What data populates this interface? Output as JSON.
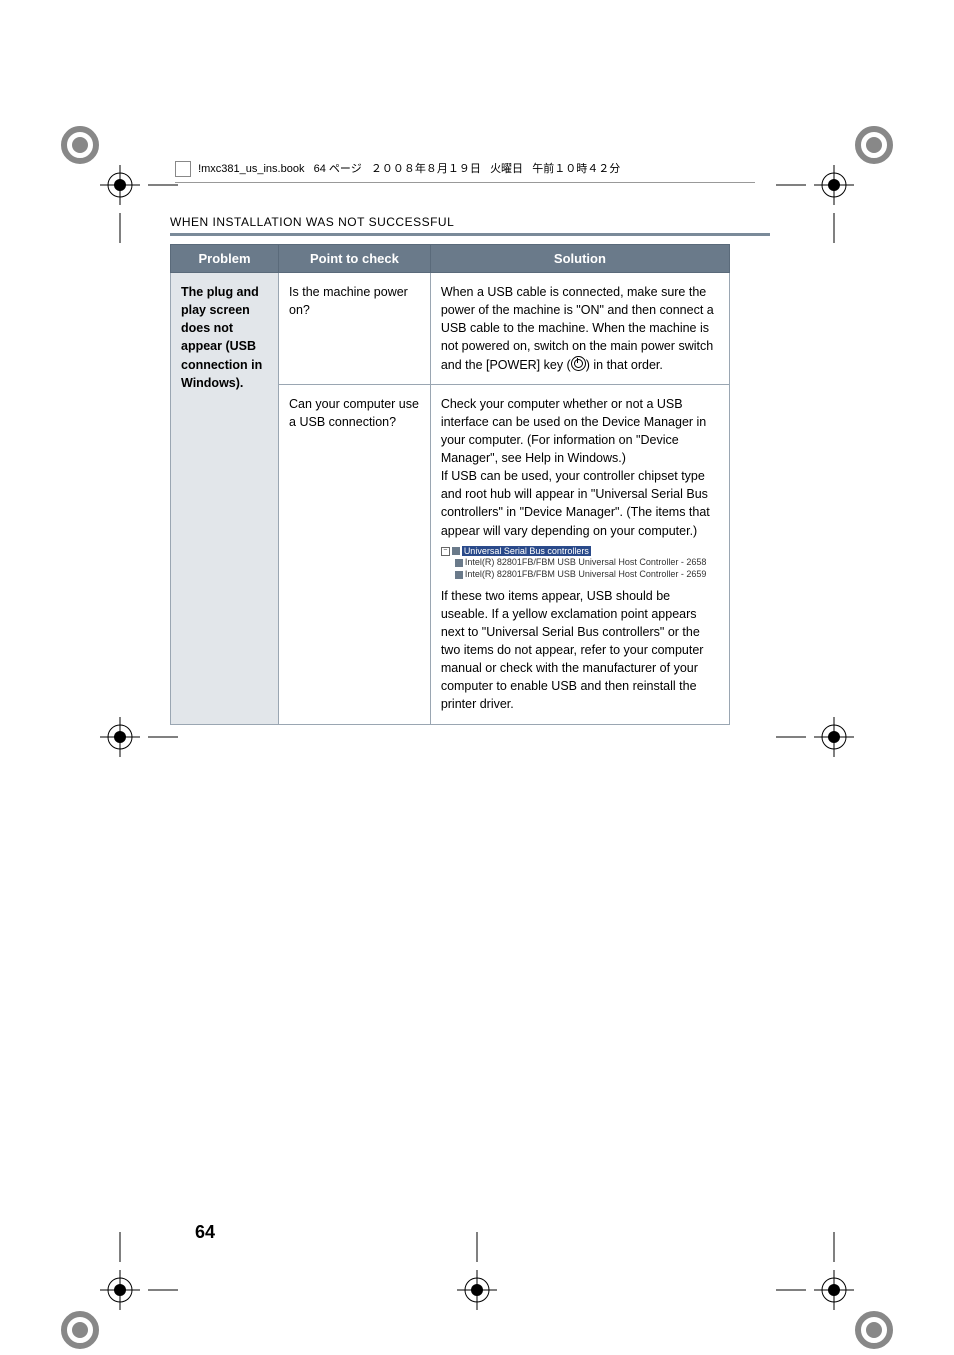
{
  "crop_marks": {
    "stroke": "#000000",
    "ring_fill": "#7a7a7a",
    "positions": [
      "top-left",
      "top-right",
      "mid-left",
      "mid-right",
      "bot-left",
      "bot-right",
      "bot-center"
    ]
  },
  "file_header": {
    "filename": "!mxc381_us_ins.book",
    "page_label": "64 ページ",
    "date": "２００８年８月１９日",
    "weekday": "火曜日",
    "time": "午前１０時４２分"
  },
  "section_title": "WHEN INSTALLATION WAS NOT SUCCESSFUL",
  "table": {
    "headers": {
      "problem": "Problem",
      "check": "Point to check",
      "solution": "Solution"
    },
    "problem_text": "The plug and play screen does not appear (USB connection in Windows).",
    "rows": [
      {
        "check": "Is the machine power on?",
        "solution": "When a USB cable is connected, make sure the power of the machine is \"ON\" and then connect a USB cable to the machine. When the machine is not powered on, switch on the main power switch and the [POWER] key (",
        "solution_tail": ") in that order."
      },
      {
        "check": "Can your computer use a USB connection?",
        "solution_before": "Check your computer whether or not a USB interface can be used on the Device Manager in your computer. (For information on \"Device Manager\", see Help in Windows.)\nIf USB can be used, your controller chipset type and root hub will appear in \"Universal Serial Bus controllers\" in \"Device Manager\". (The items that appear will vary depending on your computer.)",
        "dm_root": "Universal Serial Bus controllers",
        "dm_child1": "Intel(R) 82801FB/FBM USB Universal Host Controller - 2658",
        "dm_child2": "Intel(R) 82801FB/FBM USB Universal Host Controller - 2659",
        "solution_after": "If these two items appear, USB should be useable. If a yellow exclamation point appears next to \"Universal Serial Bus controllers\" or the two items do not appear, refer to your computer manual or check with the manufacturer of your computer to enable USB and then reinstall the printer driver."
      }
    ]
  },
  "page_number": "64",
  "colors": {
    "header_bg": "#6a7a8a",
    "header_text": "#ffffff",
    "cell_border": "#9aa6b2",
    "problem_bg": "#e2e6ea",
    "title_rule": "#7a8a99"
  }
}
